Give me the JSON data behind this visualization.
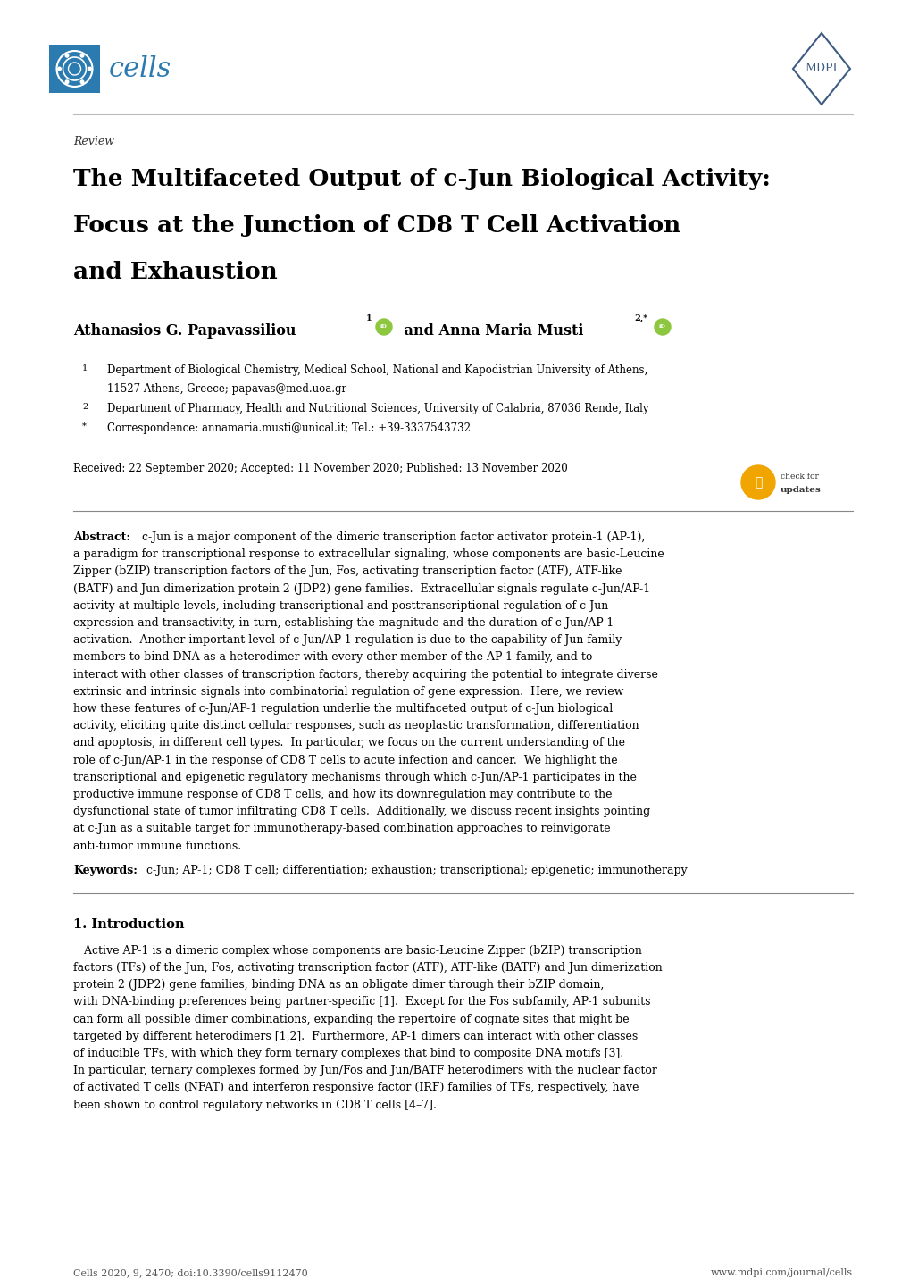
{
  "bg_color": "#ffffff",
  "page_width": 10.2,
  "page_height": 14.42,
  "cells_color": "#2b7bb0",
  "review_text": "Review",
  "title_line1": "The Multifaceted Output of c-Jun Biological Activity:",
  "title_line2": "Focus at the Junction of CD8 T Cell Activation",
  "title_line3": "and Exhaustion",
  "author1": "Athanasios G. Papavassiliou",
  "author2": " and Anna Maria Musti",
  "affil1_num": "1",
  "affil1": "Department of Biological Chemistry, Medical School, National and Kapodistrian University of Athens,",
  "affil1b": "11527 Athens, Greece; papavas@med.uoa.gr",
  "affil2_num": "2",
  "affil2": "Department of Pharmacy, Health and Nutritional Sciences, University of Calabria, 87036 Rende, Italy",
  "affil3_num": "*",
  "affil3": "Correspondence: annamaria.musti@unical.it; Tel.: +39-3337543732",
  "received": "Received: 22 September 2020; Accepted: 11 November 2020; Published: 13 November 2020",
  "abstract_lines": [
    "c-Jun is a major component of the dimeric transcription factor activator protein-1 (AP-1),",
    "a paradigm for transcriptional response to extracellular signaling, whose components are basic-Leucine",
    "Zipper (bZIP) transcription factors of the Jun, Fos, activating transcription factor (ATF), ATF-like",
    "(BATF) and Jun dimerization protein 2 (JDP2) gene families.  Extracellular signals regulate c-Jun/AP-1",
    "activity at multiple levels, including transcriptional and posttranscriptional regulation of c-Jun",
    "expression and transactivity, in turn, establishing the magnitude and the duration of c-Jun/AP-1",
    "activation.  Another important level of c-Jun/AP-1 regulation is due to the capability of Jun family",
    "members to bind DNA as a heterodimer with every other member of the AP-1 family, and to",
    "interact with other classes of transcription factors, thereby acquiring the potential to integrate diverse",
    "extrinsic and intrinsic signals into combinatorial regulation of gene expression.  Here, we review",
    "how these features of c-Jun/AP-1 regulation underlie the multifaceted output of c-Jun biological",
    "activity, eliciting quite distinct cellular responses, such as neoplastic transformation, differentiation",
    "and apoptosis, in different cell types.  In particular, we focus on the current understanding of the",
    "role of c-Jun/AP-1 in the response of CD8 T cells to acute infection and cancer.  We highlight the",
    "transcriptional and epigenetic regulatory mechanisms through which c-Jun/AP-1 participates in the",
    "productive immune response of CD8 T cells, and how its downregulation may contribute to the",
    "dysfunctional state of tumor infiltrating CD8 T cells.  Additionally, we discuss recent insights pointing",
    "at c-Jun as a suitable target for immunotherapy-based combination approaches to reinvigorate",
    "anti-tumor immune functions."
  ],
  "keywords_text": "c-Jun; AP-1; CD8 T cell; differentiation; exhaustion; transcriptional; epigenetic; immunotherapy",
  "section_title": "1. Introduction",
  "intro_lines": [
    "   Active AP-1 is a dimeric complex whose components are basic-Leucine Zipper (bZIP) transcription",
    "factors (TFs) of the Jun, Fos, activating transcription factor (ATF), ATF-like (BATF) and Jun dimerization",
    "protein 2 (JDP2) gene families, binding DNA as an obligate dimer through their bZIP domain,",
    "with DNA-binding preferences being partner-specific [1].  Except for the Fos subfamily, AP-1 subunits",
    "can form all possible dimer combinations, expanding the repertoire of cognate sites that might be",
    "targeted by different heterodimers [1,2].  Furthermore, AP-1 dimers can interact with other classes",
    "of inducible TFs, with which they form ternary complexes that bind to composite DNA motifs [3].",
    "In particular, ternary complexes formed by Jun/Fos and Jun/BATF heterodimers with the nuclear factor",
    "of activated T cells (NFAT) and interferon responsive factor (IRF) families of TFs, respectively, have",
    "been shown to control regulatory networks in CD8 T cells [4–7]."
  ],
  "footer_left": "Cells 2020, 9, 2470; doi:10.3390/cells9112470",
  "footer_right": "www.mdpi.com/journal/cells",
  "text_color": "#000000",
  "orcid_green": "#8dc63f",
  "badge_orange": "#f0a500"
}
